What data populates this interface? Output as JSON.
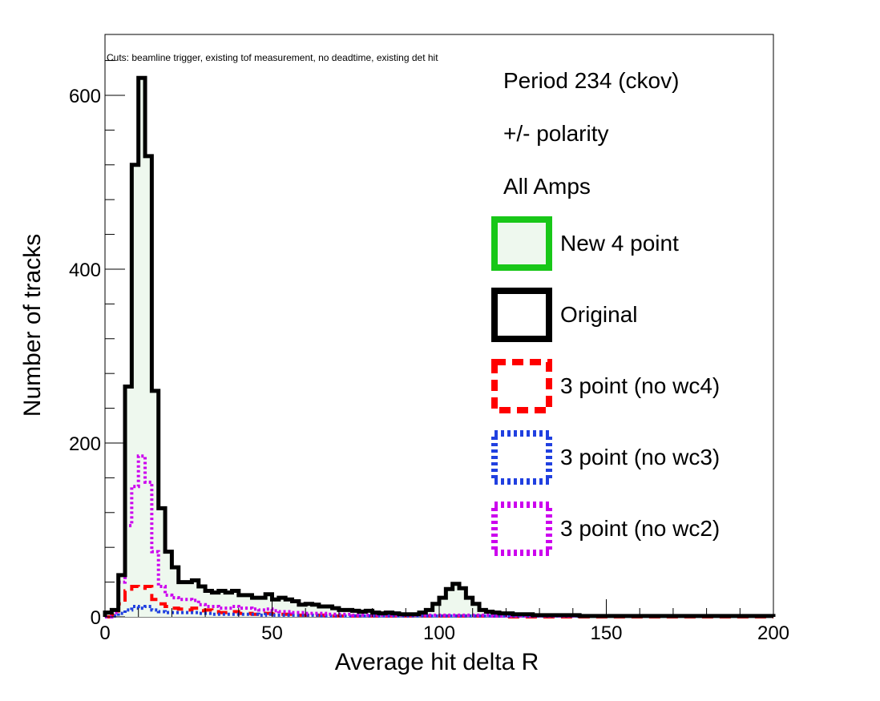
{
  "chart_data": {
    "type": "histogram",
    "xlabel": "Average hit delta R",
    "ylabel": "Number of tracks",
    "xlim": [
      0,
      200
    ],
    "ylim": [
      0,
      670
    ],
    "x_ticks": [
      0,
      50,
      100,
      150,
      200
    ],
    "y_ticks": [
      0,
      200,
      400,
      600
    ],
    "bin_width": 2,
    "annotation": "Cuts: beamline trigger, existing tof measurement, no deadtime, existing det hit",
    "info_lines": [
      "Period 234 (ckov)",
      "+/- polarity",
      "All Amps"
    ],
    "legend_position": "right",
    "series": [
      {
        "name": "New 4 point",
        "color": "#18c718",
        "fill": "#eef8ee",
        "style": "solid",
        "values": [
          5,
          8,
          48,
          265,
          520,
          620,
          530,
          260,
          125,
          75,
          57,
          40,
          40,
          42,
          35,
          30,
          28,
          30,
          28,
          30,
          25,
          25,
          22,
          22,
          26,
          20,
          22,
          20,
          18,
          14,
          15,
          14,
          12,
          12,
          10,
          8,
          8,
          7,
          6,
          7,
          5,
          4,
          5,
          4,
          3,
          3,
          3,
          5,
          8,
          15,
          22,
          32,
          38,
          33,
          22,
          15,
          8,
          6,
          5,
          4,
          4,
          3,
          3,
          3,
          2,
          2,
          2,
          2,
          2,
          2,
          2,
          1,
          1,
          1,
          1,
          1,
          1,
          1,
          1,
          1,
          1,
          1,
          1,
          1,
          1,
          1,
          1,
          1,
          1,
          1,
          1,
          1,
          1,
          1,
          1,
          1,
          1,
          1,
          1,
          1
        ]
      },
      {
        "name": "Original",
        "color": "#000000",
        "fill": "none",
        "style": "solid",
        "values": [
          5,
          8,
          48,
          265,
          520,
          620,
          530,
          260,
          125,
          75,
          57,
          40,
          40,
          42,
          35,
          30,
          28,
          30,
          28,
          30,
          25,
          25,
          22,
          22,
          26,
          20,
          22,
          20,
          18,
          14,
          15,
          14,
          12,
          12,
          10,
          8,
          8,
          7,
          6,
          7,
          5,
          4,
          5,
          4,
          3,
          3,
          3,
          5,
          8,
          15,
          22,
          32,
          38,
          33,
          22,
          15,
          8,
          6,
          5,
          4,
          4,
          3,
          3,
          3,
          2,
          2,
          2,
          2,
          2,
          2,
          2,
          1,
          1,
          1,
          1,
          1,
          1,
          1,
          1,
          1,
          1,
          1,
          1,
          1,
          1,
          1,
          1,
          1,
          1,
          1,
          1,
          1,
          1,
          1,
          1,
          1,
          1,
          1,
          1,
          1
        ]
      },
      {
        "name": "3 point (no wc4)",
        "color": "#ff0000",
        "fill": "none",
        "style": "dashed",
        "values": [
          0,
          2,
          15,
          30,
          35,
          33,
          35,
          20,
          15,
          12,
          10,
          9,
          8,
          10,
          7,
          8,
          6,
          5,
          5,
          6,
          4,
          4,
          3,
          3,
          4,
          3,
          3,
          3,
          2,
          2,
          2,
          2,
          2,
          1,
          1,
          1,
          1,
          1,
          1,
          1,
          1,
          1,
          1,
          1,
          1,
          1,
          1,
          1,
          1,
          1,
          1,
          1,
          1,
          1,
          1,
          1,
          1,
          1,
          1,
          1,
          0,
          0,
          0,
          0,
          0,
          0,
          0,
          0,
          0,
          0,
          0,
          0,
          0,
          0,
          0,
          0,
          0,
          0,
          0,
          0,
          0,
          0,
          0,
          0,
          0,
          0,
          0,
          0,
          0,
          0,
          0,
          0,
          0,
          0,
          0,
          0,
          0,
          0,
          0,
          0
        ]
      },
      {
        "name": "3 point (no wc3)",
        "color": "#2040e0",
        "fill": "none",
        "style": "dotted",
        "values": [
          0,
          1,
          4,
          8,
          12,
          10,
          12,
          8,
          6,
          5,
          5,
          5,
          5,
          5,
          4,
          4,
          3,
          3,
          3,
          3,
          3,
          3,
          3,
          2,
          3,
          2,
          2,
          2,
          2,
          2,
          2,
          2,
          1,
          1,
          1,
          1,
          1,
          1,
          1,
          1,
          1,
          1,
          1,
          1,
          1,
          1,
          1,
          1,
          1,
          1,
          1,
          1,
          1,
          1,
          1,
          1,
          1,
          1,
          1,
          1,
          1,
          1,
          1,
          1,
          1,
          1,
          1,
          1,
          1,
          1,
          1,
          1,
          1,
          1,
          1,
          1,
          1,
          1,
          1,
          1,
          1,
          1,
          1,
          1,
          1,
          1,
          1,
          1,
          1,
          1,
          1,
          1,
          1,
          1,
          1,
          1,
          1,
          1,
          1,
          1
        ]
      },
      {
        "name": "3 point (no wc2)",
        "color": "#cc00ee",
        "fill": "none",
        "style": "dotted",
        "values": [
          0,
          5,
          40,
          105,
          150,
          185,
          155,
          75,
          35,
          25,
          22,
          20,
          20,
          19,
          14,
          12,
          12,
          10,
          10,
          12,
          10,
          10,
          9,
          8,
          9,
          7,
          6,
          6,
          5,
          5,
          4,
          4,
          4,
          3,
          3,
          3,
          3,
          2,
          2,
          2,
          2,
          2,
          2,
          2,
          2,
          2,
          2,
          2,
          2,
          2,
          2,
          2,
          2,
          2,
          2,
          2,
          2,
          2,
          1,
          1,
          1,
          1,
          1,
          1,
          1,
          1,
          1,
          1,
          1,
          1,
          1,
          1,
          1,
          1,
          1,
          1,
          1,
          1,
          1,
          1,
          1,
          1,
          1,
          1,
          1,
          1,
          1,
          1,
          1,
          1,
          1,
          1,
          1,
          1,
          1,
          1,
          1,
          1,
          1,
          1
        ]
      }
    ]
  }
}
